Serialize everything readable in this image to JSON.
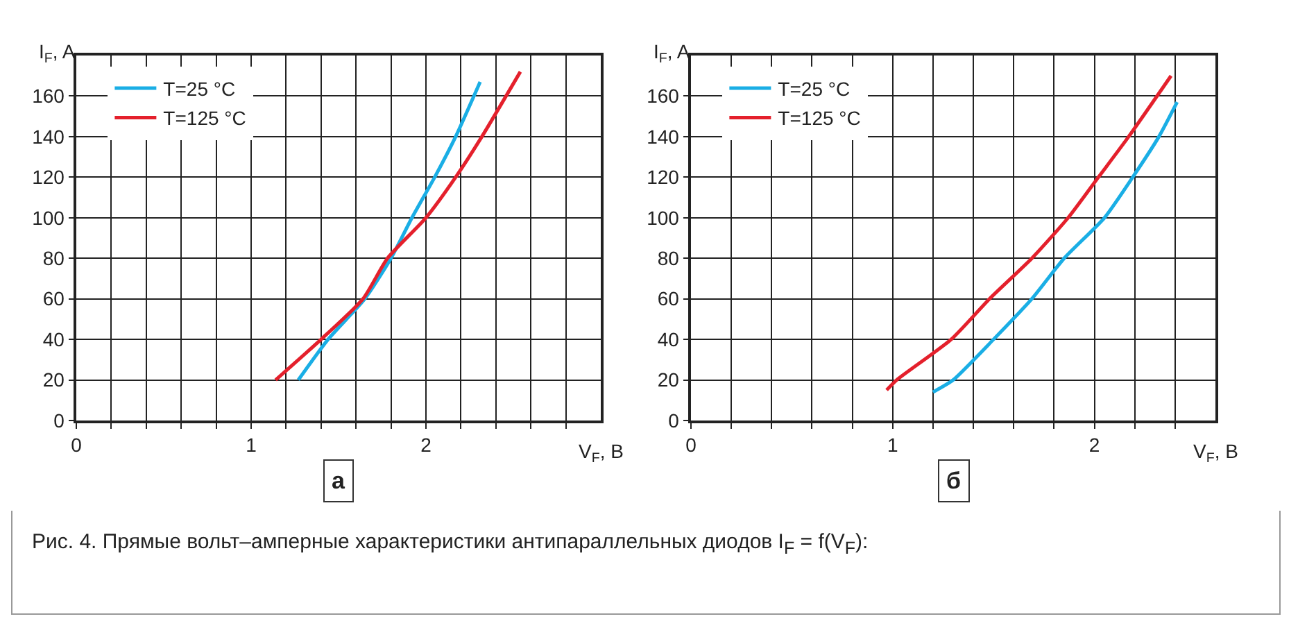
{
  "chart_data": [
    {
      "type": "line",
      "xlabel": "V$_{F}$, B",
      "ylabel": "I$_{F}$, A",
      "annotations": [
        "а"
      ],
      "legend": "top left",
      "grid": true,
      "xlim": [
        0,
        3
      ],
      "ylim": [
        0,
        180
      ],
      "xticks": [
        0,
        {
          "value": 0.2,
          "label": null
        },
        {
          "value": 0.4,
          "label": null
        },
        {
          "value": 0.6,
          "label": null
        },
        {
          "value": 0.8,
          "label": null
        },
        1,
        {
          "value": 1.2,
          "label": null
        },
        {
          "value": 1.4,
          "label": null
        },
        {
          "value": 1.6,
          "label": null
        },
        {
          "value": 1.8,
          "label": null
        },
        2,
        {
          "value": 2.2,
          "label": null
        },
        {
          "value": 2.4,
          "label": null
        },
        {
          "value": 2.6,
          "label": null
        },
        {
          "value": 2.8,
          "label": null
        }
      ],
      "yticks": [
        0,
        20,
        40,
        60,
        80,
        100,
        120,
        140,
        160
      ],
      "series": [
        {
          "name": "T=25 °C",
          "color": "#1aaee5",
          "x": [
            1.27,
            1.44,
            1.65,
            1.8,
            1.92,
            2.05,
            2.17,
            2.31
          ],
          "values": [
            20,
            40,
            60,
            80,
            100,
            120,
            140,
            167
          ]
        },
        {
          "name": "T=125 °C",
          "color": "#e4202c",
          "x": [
            1.14,
            1.4,
            1.64,
            1.78,
            2.0,
            2.17,
            2.32,
            2.54
          ],
          "values": [
            20,
            40,
            60,
            80,
            100,
            120,
            140,
            172
          ]
        }
      ]
    },
    {
      "type": "line",
      "xlabel": "V$_{F}$, B",
      "ylabel": "I$_{F}$, A",
      "annotations": [
        "б"
      ],
      "legend": "top left",
      "grid": true,
      "xlim": [
        0,
        2.6
      ],
      "ylim": [
        0,
        180
      ],
      "xticks": [
        0,
        {
          "value": 0.2,
          "label": null
        },
        {
          "value": 0.4,
          "label": null
        },
        {
          "value": 0.6,
          "label": null
        },
        {
          "value": 0.8,
          "label": null
        },
        1,
        {
          "value": 1.2,
          "label": null
        },
        {
          "value": 1.4,
          "label": null
        },
        {
          "value": 1.6,
          "label": null
        },
        {
          "value": 1.8,
          "label": null
        },
        2,
        {
          "value": 2.2,
          "label": null
        },
        {
          "value": 2.4,
          "label": null
        }
      ],
      "yticks": [
        0,
        20,
        40,
        60,
        80,
        100,
        120,
        140,
        160
      ],
      "series": [
        {
          "name": "T=25 °C",
          "color": "#1aaee5",
          "x": [
            1.2,
            1.3,
            1.5,
            1.69,
            1.85,
            2.05,
            2.19,
            2.32,
            2.41
          ],
          "values": [
            14,
            20,
            40,
            60,
            80,
            100,
            120,
            140,
            157
          ]
        },
        {
          "name": "T=125 °C",
          "color": "#e4202c",
          "x": [
            0.97,
            1.02,
            1.29,
            1.48,
            1.69,
            1.87,
            2.02,
            2.17,
            2.38
          ],
          "values": [
            15,
            20,
            40,
            60,
            80,
            100,
            120,
            140,
            170
          ]
        }
      ]
    },
    {
      "type": "other",
      "annotations": [
        "Рис. 4. Прямые вольт–амперные характеристики антипараллельных диодов I$_{F}$ = f(V$_{F}$):"
      ]
    }
  ]
}
